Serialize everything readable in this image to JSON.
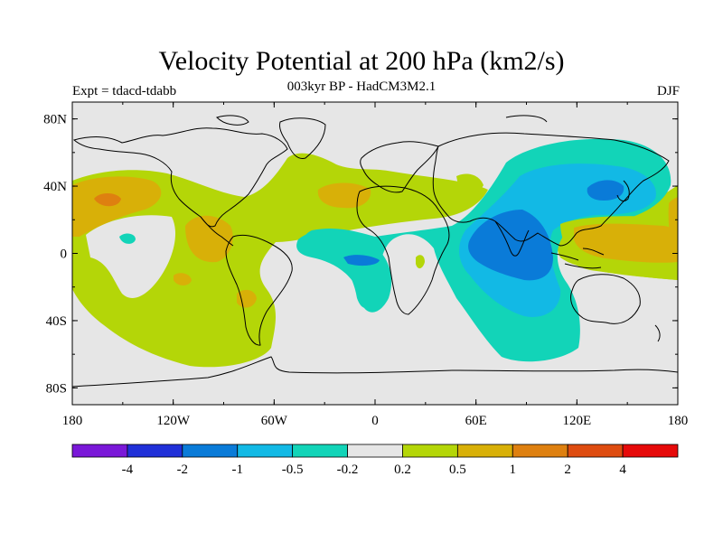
{
  "title": "Velocity Potential at 200 hPa (km2/s)",
  "subtitle": "003kyr BP - HadCM3M2.1",
  "expt_label": "Expt = tdacd-tdabb",
  "season": "DJF",
  "map": {
    "lon_ticks": [
      "180",
      "120W",
      "60W",
      "0",
      "60E",
      "120E",
      "180"
    ],
    "lat_ticks": [
      "80N",
      "40N",
      "0",
      "40S",
      "80S"
    ],
    "lon_range": [
      -180,
      180
    ],
    "lat_range": [
      -90,
      90
    ]
  },
  "colorbar": {
    "colors": [
      "#7a18d8",
      "#2030d8",
      "#0a7bd8",
      "#12b9e5",
      "#12d4b8",
      "#e6e6e6",
      "#b4d608",
      "#d8b008",
      "#de8010",
      "#de4c10",
      "#e60a0a"
    ],
    "labels": [
      "-4",
      "-2",
      "-1",
      "-0.5",
      "-0.2",
      "0.2",
      "0.5",
      "1",
      "2",
      "4"
    ]
  },
  "palette": {
    "neutral": "#e6e6e6",
    "pos1": "#b4d608",
    "pos2": "#d8b008",
    "pos3": "#de8010",
    "neg1": "#12d4b8",
    "neg2": "#12b9e5",
    "neg3": "#0a7bd8"
  }
}
